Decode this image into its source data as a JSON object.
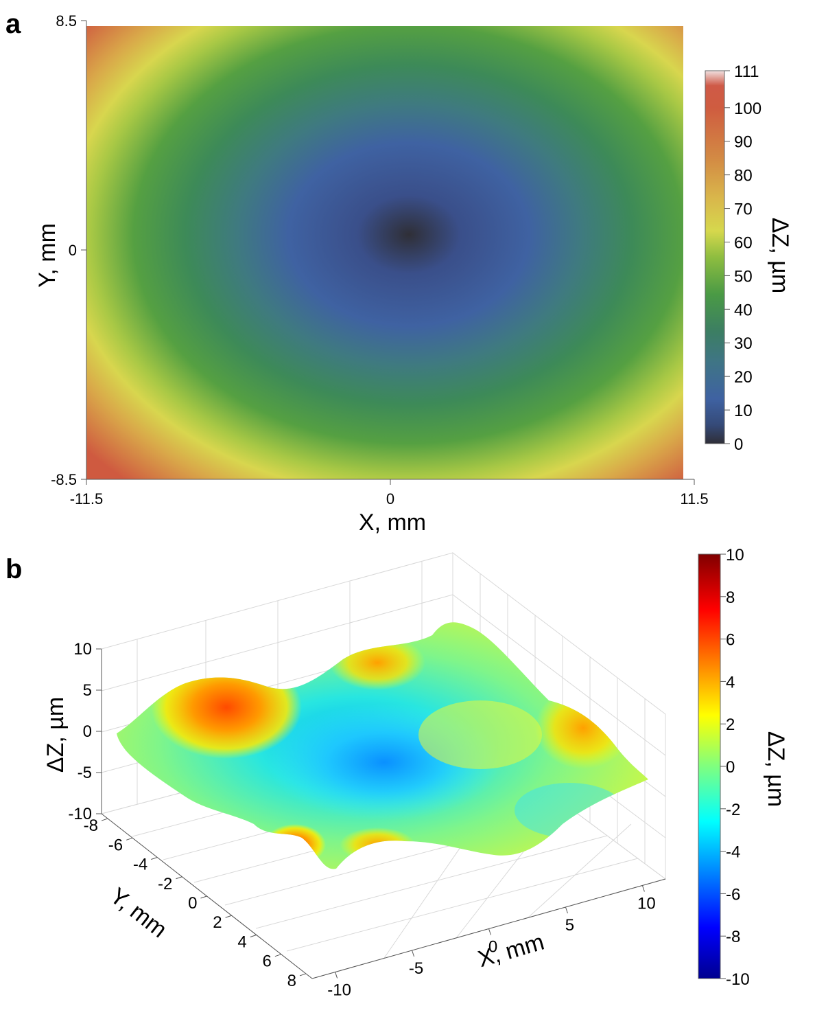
{
  "chart_data": [
    {
      "panel": "a",
      "type": "heatmap",
      "title": "",
      "xlabel": "X, mm",
      "ylabel": "Y, mm",
      "xlim": [
        -11.5,
        11.5
      ],
      "ylim": [
        -8.5,
        8.5
      ],
      "x_ticks": [
        "-11.5",
        "0",
        "11.5"
      ],
      "y_ticks": [
        "8.5",
        "0",
        "-8.5"
      ],
      "colorbar": {
        "label": "ΔZ, µm",
        "range": [
          0,
          111
        ],
        "ticks": [
          "111",
          "100",
          "90",
          "80",
          "70",
          "60",
          "50",
          "40",
          "30",
          "20",
          "10",
          "0"
        ],
        "tick_values": [
          111,
          100,
          90,
          80,
          70,
          60,
          50,
          40,
          30,
          20,
          10,
          0
        ]
      },
      "surface": {
        "description_model": "bowl-shaped deviation, minimum near center, rising toward corners",
        "center": [
          0.6,
          0.5
        ],
        "min_value": 0,
        "corner_max_value": 105
      }
    },
    {
      "panel": "b",
      "type": "surface3d",
      "title": "",
      "xlabel": "X, mm",
      "ylabel": "Y, mm",
      "zlabel": "ΔZ, µm",
      "xlim": [
        -11.5,
        11.5
      ],
      "ylim": [
        -8.5,
        8.5
      ],
      "zlim": [
        -10,
        10
      ],
      "x_ticks": [
        "-10",
        "-5",
        "0",
        "5",
        "10"
      ],
      "y_ticks": [
        "-8",
        "-6",
        "-4",
        "-2",
        "0",
        "2",
        "4",
        "6",
        "8"
      ],
      "z_ticks": [
        "10",
        "5",
        "0",
        "-5",
        "-10"
      ],
      "colorbar": {
        "label": "ΔZ, µm",
        "range": [
          -10,
          10
        ],
        "ticks": [
          "10",
          "8",
          "6",
          "4",
          "2",
          "0",
          "-2",
          "-4",
          "-6",
          "-8",
          "-10"
        ],
        "tick_values": [
          10,
          8,
          6,
          4,
          2,
          0,
          -2,
          -4,
          -6,
          -8,
          -10
        ]
      },
      "surface": {
        "min_value": -3.5,
        "max_value": 6,
        "peaks": [
          {
            "x": -7,
            "y": -5,
            "z": 6
          },
          {
            "x": 3,
            "y": -7,
            "z": 3.5
          },
          {
            "x": 10,
            "y": 0,
            "z": 3
          },
          {
            "x": -6,
            "y": 7,
            "z": 5
          }
        ],
        "trough": {
          "x": 0,
          "y": 1,
          "z": -3.5
        }
      }
    }
  ],
  "panel_labels": {
    "a": "a",
    "b": "b"
  }
}
